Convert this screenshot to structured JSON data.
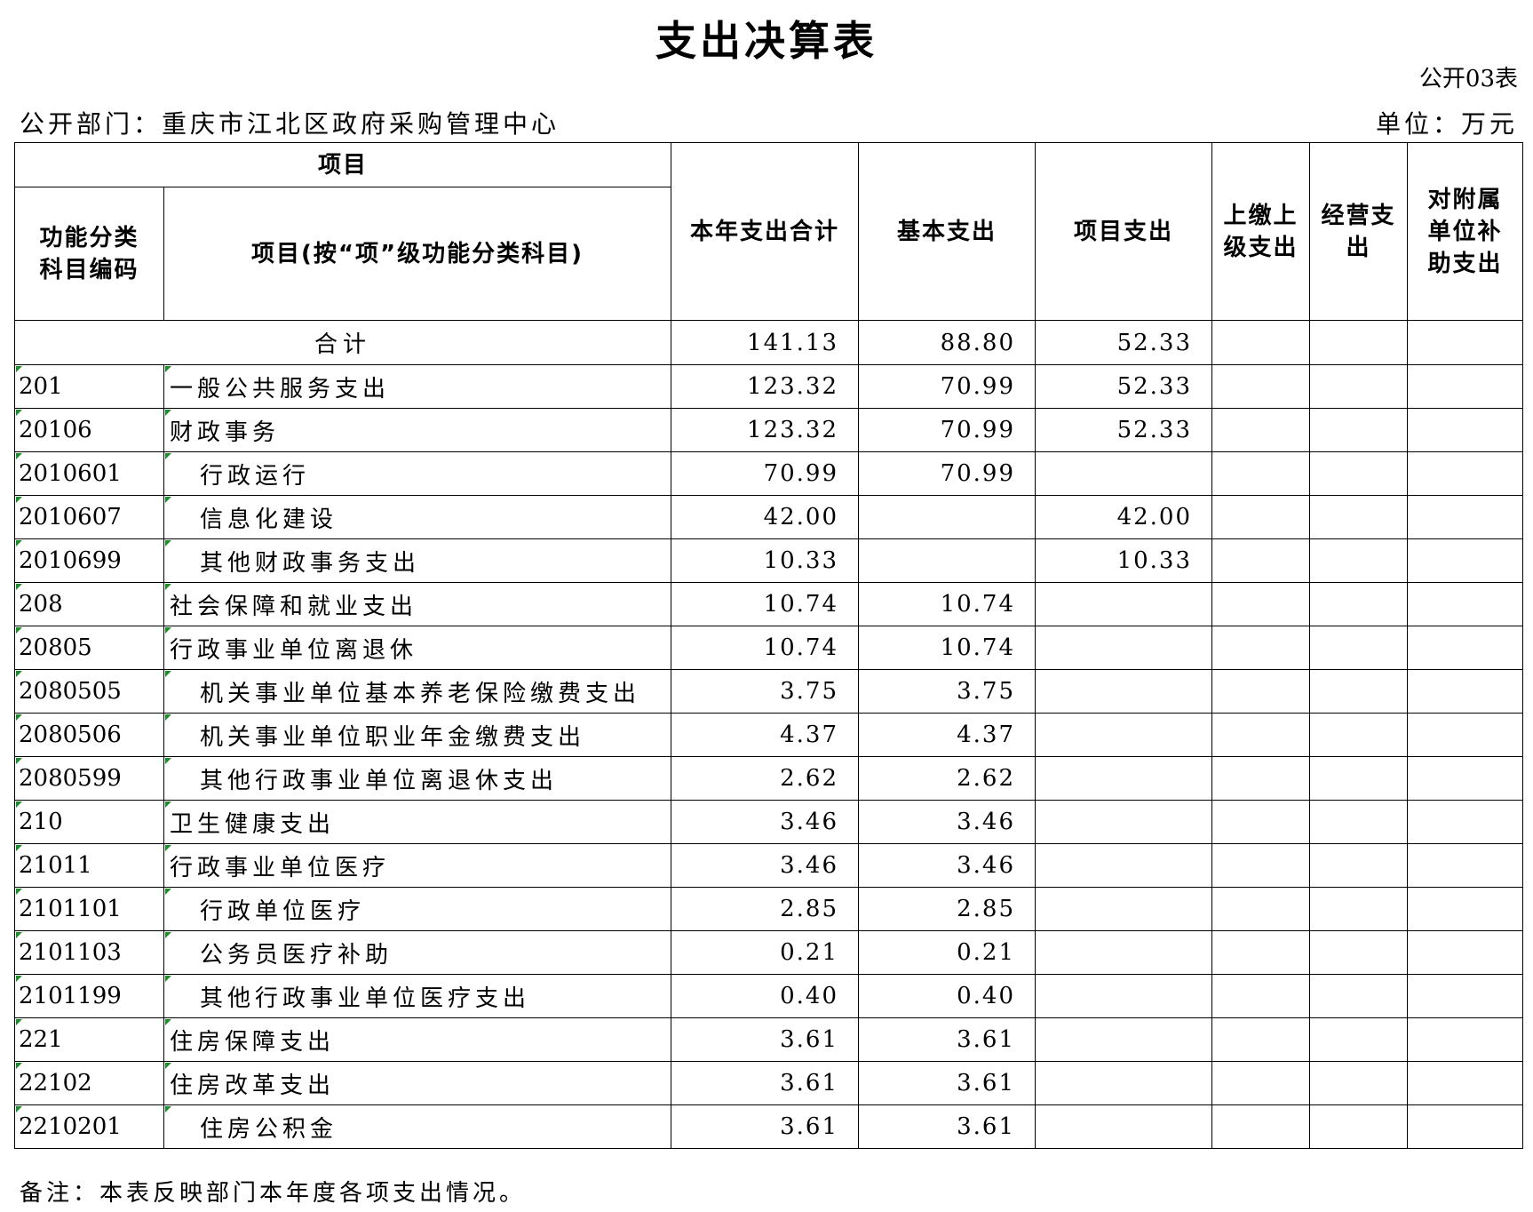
{
  "title": "支出决算表",
  "form_no": "公开03表",
  "department": "公开部门：重庆市江北区政府采购管理中心",
  "unit": "单位：万元",
  "headers": {
    "project": "项目",
    "code_line1": "功能分类",
    "code_line2": "科目编码",
    "name": "项目(按“项”级功能分类科目)",
    "total": "本年支出合计",
    "basic": "基本支出",
    "proj": "项目支出",
    "upper_line1": "上缴上",
    "upper_line2": "级支出",
    "oper_line1": "经营支",
    "oper_line2": "出",
    "sub_line1": "对附属",
    "sub_line2": "单位补",
    "sub_line3": "助支出"
  },
  "total_row": {
    "label": "合计",
    "total": "141.13",
    "basic": "88.80",
    "proj": "52.33"
  },
  "rows": [
    {
      "code": "201",
      "name": "一般公共服务支出",
      "total": "123.32",
      "basic": "70.99",
      "proj": "52.33"
    },
    {
      "code": "20106",
      "name": "财政事务",
      "total": "123.32",
      "basic": "70.99",
      "proj": "52.33"
    },
    {
      "code": "2010601",
      "name": "行政运行",
      "total": "70.99",
      "basic": "70.99",
      "proj": ""
    },
    {
      "code": "2010607",
      "name": "信息化建设",
      "total": "42.00",
      "basic": "",
      "proj": "42.00"
    },
    {
      "code": "2010699",
      "name": "其他财政事务支出",
      "total": "10.33",
      "basic": "",
      "proj": "10.33"
    },
    {
      "code": "208",
      "name": "社会保障和就业支出",
      "total": "10.74",
      "basic": "10.74",
      "proj": ""
    },
    {
      "code": "20805",
      "name": "行政事业单位离退休",
      "total": "10.74",
      "basic": "10.74",
      "proj": ""
    },
    {
      "code": "2080505",
      "name": "机关事业单位基本养老保险缴费支出",
      "total": "3.75",
      "basic": "3.75",
      "proj": ""
    },
    {
      "code": "2080506",
      "name": "机关事业单位职业年金缴费支出",
      "total": "4.37",
      "basic": "4.37",
      "proj": ""
    },
    {
      "code": "2080599",
      "name": "其他行政事业单位离退休支出",
      "total": "2.62",
      "basic": "2.62",
      "proj": ""
    },
    {
      "code": "210",
      "name": "卫生健康支出",
      "total": "3.46",
      "basic": "3.46",
      "proj": ""
    },
    {
      "code": "21011",
      "name": "行政事业单位医疗",
      "total": "3.46",
      "basic": "3.46",
      "proj": ""
    },
    {
      "code": "2101101",
      "name": "行政单位医疗",
      "total": "2.85",
      "basic": "2.85",
      "proj": ""
    },
    {
      "code": "2101103",
      "name": "公务员医疗补助",
      "total": "0.21",
      "basic": "0.21",
      "proj": ""
    },
    {
      "code": "2101199",
      "name": "其他行政事业单位医疗支出",
      "total": "0.40",
      "basic": "0.40",
      "proj": ""
    },
    {
      "code": "221",
      "name": "住房保障支出",
      "total": "3.61",
      "basic": "3.61",
      "proj": ""
    },
    {
      "code": "22102",
      "name": "住房改革支出",
      "total": "3.61",
      "basic": "3.61",
      "proj": ""
    },
    {
      "code": "2210201",
      "name": "住房公积金",
      "total": "3.61",
      "basic": "3.61",
      "proj": ""
    }
  ],
  "note": "备注：本表反映部门本年度各项支出情况。"
}
